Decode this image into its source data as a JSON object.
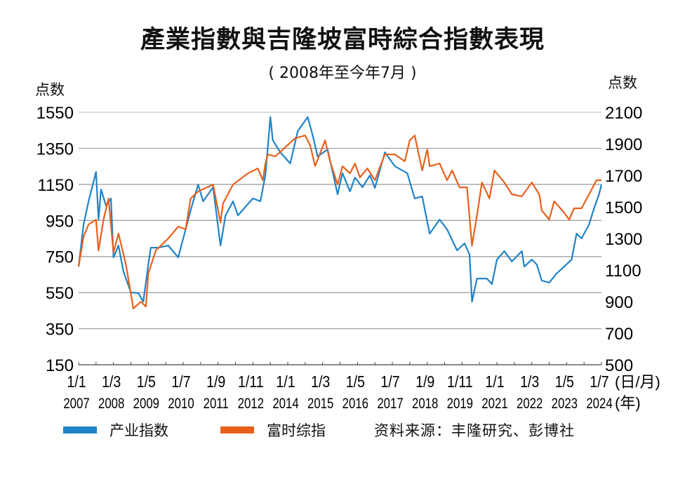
{
  "chart_data": {
    "type": "line",
    "title": "產業指數與吉隆坡富時綜合指數表現",
    "subtitle": "( 2008年至今年7月 )",
    "ylabel_left": "点数",
    "ylabel_right": "点数",
    "xlabel_top": "(日/月)",
    "xlabel_bottom": "(年)",
    "x_ticks": [
      {
        "date": "2007-01",
        "day_month": "1/1",
        "year": "2007"
      },
      {
        "date": "2008-03",
        "day_month": "1/3",
        "year": "2008"
      },
      {
        "date": "2009-05",
        "day_month": "1/5",
        "year": "2009"
      },
      {
        "date": "2010-07",
        "day_month": "1/7",
        "year": "2010"
      },
      {
        "date": "2011-09",
        "day_month": "1/9",
        "year": "2011"
      },
      {
        "date": "2012-11",
        "day_month": "1/11",
        "year": "2012"
      },
      {
        "date": "2014-01",
        "day_month": "1/1",
        "year": "2014"
      },
      {
        "date": "2015-03",
        "day_month": "1/3",
        "year": "2015"
      },
      {
        "date": "2016-05",
        "day_month": "1/5",
        "year": "2016"
      },
      {
        "date": "2017-07",
        "day_month": "1/7",
        "year": "2017"
      },
      {
        "date": "2018-09",
        "day_month": "1/9",
        "year": "2018"
      },
      {
        "date": "2019-11",
        "day_month": "1/11",
        "year": "2019"
      },
      {
        "date": "2021-01",
        "day_month": "1/1",
        "year": "2021"
      },
      {
        "date": "2022-03",
        "day_month": "1/3",
        "year": "2022"
      },
      {
        "date": "2023-05",
        "day_month": "1/5",
        "year": "2023"
      },
      {
        "date": "2024-07",
        "day_month": "1/7",
        "year": "2024"
      }
    ],
    "xlim": [
      "2007-01",
      "2024-07"
    ],
    "y_left": {
      "ticks": [
        150,
        350,
        550,
        750,
        950,
        1150,
        1350,
        1550
      ],
      "lim": [
        150,
        1550
      ]
    },
    "y_right": {
      "ticks": [
        500,
        700,
        900,
        1100,
        1300,
        1500,
        1700,
        1900,
        2100
      ],
      "lim": [
        500,
        2100
      ]
    },
    "grid": true,
    "legend_placement": "bottom",
    "series": [
      {
        "name": "产业指数",
        "axis": "left",
        "color": "#1f83c8",
        "points": [
          [
            "2007-01",
            694
          ],
          [
            "2007-03",
            928
          ],
          [
            "2007-05",
            1056
          ],
          [
            "2007-08",
            1219
          ],
          [
            "2007-09",
            955
          ],
          [
            "2007-10",
            1122
          ],
          [
            "2007-12",
            1033
          ],
          [
            "2008-02",
            1072
          ],
          [
            "2008-03",
            745
          ],
          [
            "2008-05",
            811
          ],
          [
            "2008-07",
            667
          ],
          [
            "2008-10",
            551
          ],
          [
            "2009-01",
            547
          ],
          [
            "2009-03",
            500
          ],
          [
            "2009-05",
            706
          ],
          [
            "2009-06",
            799
          ],
          [
            "2009-09",
            799
          ],
          [
            "2010-01",
            811
          ],
          [
            "2010-05",
            745
          ],
          [
            "2010-10",
            1006
          ],
          [
            "2011-01",
            1149
          ],
          [
            "2011-03",
            1056
          ],
          [
            "2011-07",
            1134
          ],
          [
            "2011-10",
            811
          ],
          [
            "2011-12",
            978
          ],
          [
            "2012-03",
            1056
          ],
          [
            "2012-05",
            978
          ],
          [
            "2012-11",
            1072
          ],
          [
            "2013-02",
            1056
          ],
          [
            "2013-04",
            1200
          ],
          [
            "2013-05",
            1356
          ],
          [
            "2013-06",
            1523
          ],
          [
            "2013-07",
            1394
          ],
          [
            "2013-10",
            1328
          ],
          [
            "2014-02",
            1266
          ],
          [
            "2014-05",
            1445
          ],
          [
            "2014-09",
            1523
          ],
          [
            "2014-11",
            1422
          ],
          [
            "2015-01",
            1305
          ],
          [
            "2015-05",
            1344
          ],
          [
            "2015-09",
            1095
          ],
          [
            "2015-11",
            1212
          ],
          [
            "2016-02",
            1111
          ],
          [
            "2016-04",
            1188
          ],
          [
            "2016-07",
            1134
          ],
          [
            "2016-10",
            1200
          ],
          [
            "2016-12",
            1130
          ],
          [
            "2017-04",
            1328
          ],
          [
            "2017-08",
            1251
          ],
          [
            "2018-01",
            1212
          ],
          [
            "2018-04",
            1072
          ],
          [
            "2018-07",
            1083
          ],
          [
            "2018-10",
            877
          ],
          [
            "2019-02",
            955
          ],
          [
            "2019-05",
            901
          ],
          [
            "2019-09",
            784
          ],
          [
            "2019-12",
            823
          ],
          [
            "2020-02",
            761
          ],
          [
            "2020-03",
            500
          ],
          [
            "2020-05",
            628
          ],
          [
            "2020-09",
            628
          ],
          [
            "2020-11",
            597
          ],
          [
            "2021-01",
            733
          ],
          [
            "2021-04",
            780
          ],
          [
            "2021-07",
            722
          ],
          [
            "2021-11",
            780
          ],
          [
            "2021-12",
            694
          ],
          [
            "2022-03",
            733
          ],
          [
            "2022-05",
            706
          ],
          [
            "2022-07",
            617
          ],
          [
            "2022-10",
            605
          ],
          [
            "2023-01",
            656
          ],
          [
            "2023-04",
            694
          ],
          [
            "2023-07",
            733
          ],
          [
            "2023-09",
            877
          ],
          [
            "2023-11",
            850
          ],
          [
            "2024-02",
            928
          ],
          [
            "2024-04",
            1017
          ],
          [
            "2024-06",
            1095
          ],
          [
            "2024-07",
            1149
          ]
        ]
      },
      {
        "name": "富时综指",
        "axis": "right",
        "color": "#e8601c",
        "points": [
          [
            "2007-01",
            1122
          ],
          [
            "2007-03",
            1313
          ],
          [
            "2007-05",
            1389
          ],
          [
            "2007-08",
            1420
          ],
          [
            "2007-09",
            1224
          ],
          [
            "2007-11",
            1420
          ],
          [
            "2008-01",
            1553
          ],
          [
            "2008-03",
            1211
          ],
          [
            "2008-05",
            1331
          ],
          [
            "2008-08",
            1136
          ],
          [
            "2008-11",
            856
          ],
          [
            "2009-02",
            900
          ],
          [
            "2009-04",
            869
          ],
          [
            "2009-05",
            1078
          ],
          [
            "2009-08",
            1224
          ],
          [
            "2010-01",
            1300
          ],
          [
            "2010-05",
            1375
          ],
          [
            "2010-08",
            1358
          ],
          [
            "2010-10",
            1553
          ],
          [
            "2011-01",
            1598
          ],
          [
            "2011-07",
            1642
          ],
          [
            "2011-10",
            1402
          ],
          [
            "2011-11",
            1522
          ],
          [
            "2012-03",
            1642
          ],
          [
            "2012-09",
            1713
          ],
          [
            "2013-01",
            1744
          ],
          [
            "2013-03",
            1669
          ],
          [
            "2013-04",
            1775
          ],
          [
            "2013-05",
            1833
          ],
          [
            "2013-08",
            1820
          ],
          [
            "2013-12",
            1878
          ],
          [
            "2014-04",
            1935
          ],
          [
            "2014-08",
            1953
          ],
          [
            "2014-10",
            1891
          ],
          [
            "2014-12",
            1758
          ],
          [
            "2015-04",
            1922
          ],
          [
            "2015-06",
            1789
          ],
          [
            "2015-09",
            1642
          ],
          [
            "2015-11",
            1758
          ],
          [
            "2016-02",
            1713
          ],
          [
            "2016-04",
            1775
          ],
          [
            "2016-06",
            1687
          ],
          [
            "2016-09",
            1744
          ],
          [
            "2016-12",
            1669
          ],
          [
            "2017-04",
            1833
          ],
          [
            "2017-08",
            1833
          ],
          [
            "2017-12",
            1789
          ],
          [
            "2018-02",
            1922
          ],
          [
            "2018-04",
            1953
          ],
          [
            "2018-07",
            1731
          ],
          [
            "2018-09",
            1864
          ],
          [
            "2018-10",
            1758
          ],
          [
            "2019-02",
            1775
          ],
          [
            "2019-05",
            1669
          ],
          [
            "2019-07",
            1731
          ],
          [
            "2019-10",
            1624
          ],
          [
            "2020-01",
            1624
          ],
          [
            "2020-03",
            1255
          ],
          [
            "2020-05",
            1447
          ],
          [
            "2020-07",
            1655
          ],
          [
            "2020-10",
            1553
          ],
          [
            "2020-12",
            1731
          ],
          [
            "2021-04",
            1655
          ],
          [
            "2021-07",
            1580
          ],
          [
            "2021-11",
            1567
          ],
          [
            "2022-03",
            1655
          ],
          [
            "2022-06",
            1580
          ],
          [
            "2022-07",
            1478
          ],
          [
            "2022-10",
            1420
          ],
          [
            "2022-12",
            1536
          ],
          [
            "2023-04",
            1464
          ],
          [
            "2023-06",
            1420
          ],
          [
            "2023-08",
            1491
          ],
          [
            "2023-11",
            1491
          ],
          [
            "2024-02",
            1580
          ],
          [
            "2024-05",
            1669
          ],
          [
            "2024-07",
            1669
          ]
        ]
      }
    ],
    "source": "资料来源：丰隆研究、彭博社"
  }
}
